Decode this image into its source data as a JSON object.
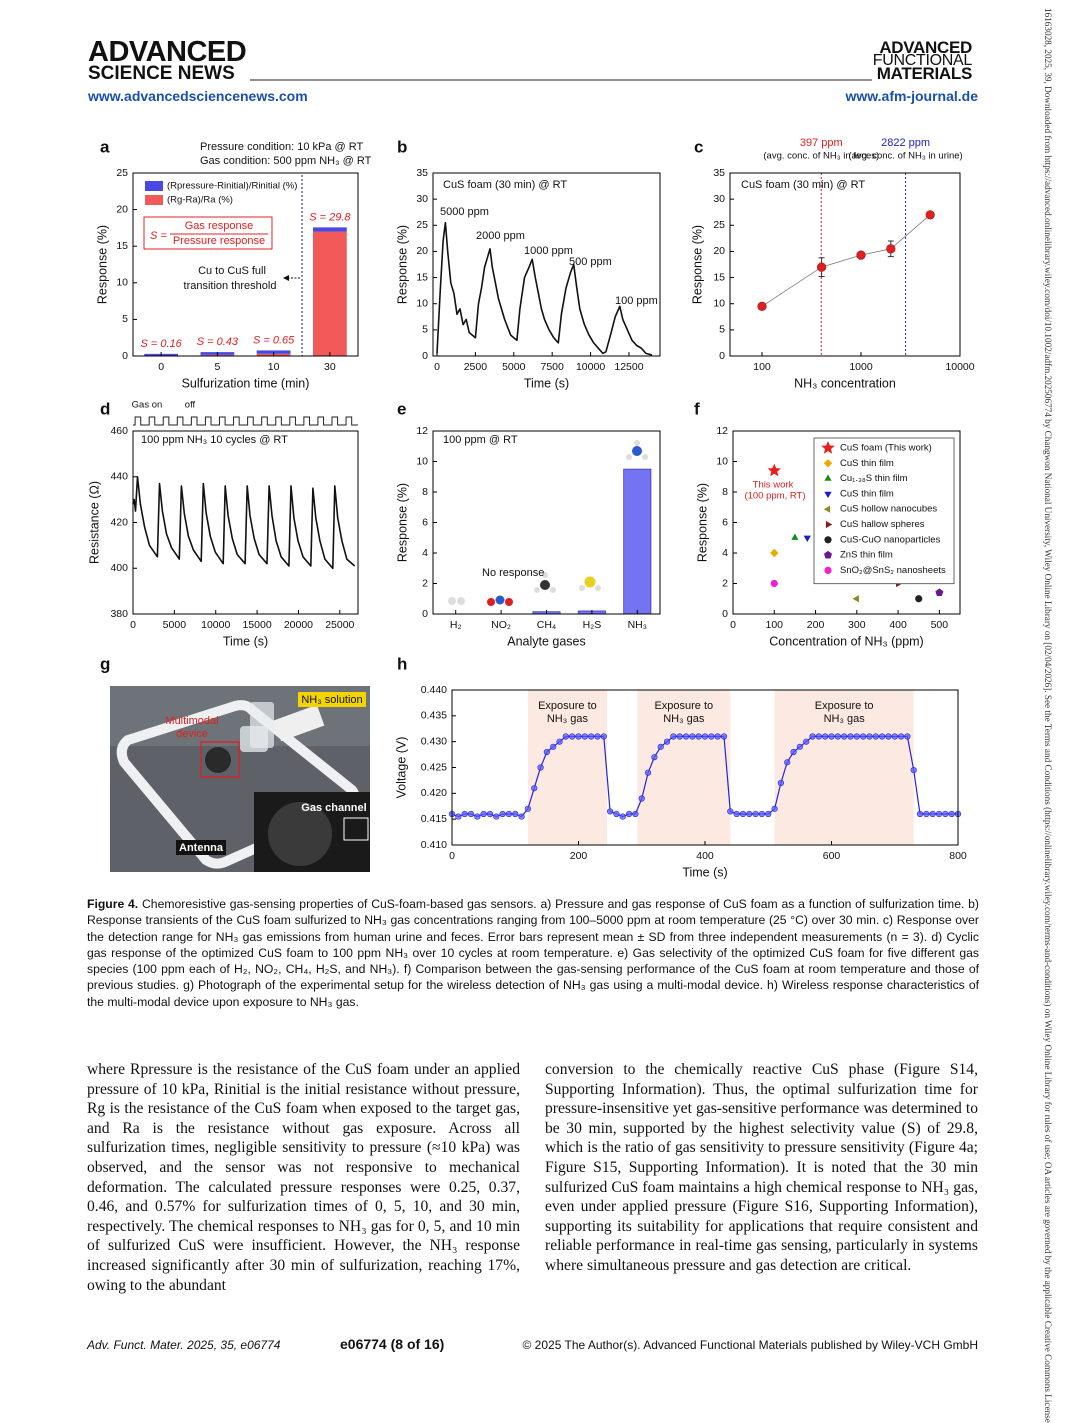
{
  "header": {
    "left_logo": [
      "ADVANCED",
      "SCIENCE NEWS"
    ],
    "left_url": "www.advancedsciencenews.com",
    "right_logo": [
      "ADVANCED",
      "FUNCTIONAL",
      "MATERIALS"
    ],
    "right_url": "www.afm-journal.de"
  },
  "chart_data": [
    {
      "type": "bar",
      "panel": "a",
      "stacked": true,
      "xlabel": "Sulfurization time (min)",
      "ylabel": "Response (%)",
      "categories": [
        "0",
        "5",
        "10",
        "30"
      ],
      "series": [
        {
          "name": "(Rg-Ra)/Ra (%)",
          "color": "#f25a5a",
          "values": [
            0.04,
            0.16,
            0.3,
            17.0
          ]
        },
        {
          "name": "(Rpressure-Rinitial)/Rinitial (%)",
          "color": "#4848e6",
          "values": [
            0.25,
            0.37,
            0.46,
            0.57
          ]
        }
      ],
      "selectivity_labels": [
        "S = 0.16",
        "S = 0.43",
        "S = 0.65",
        "S = 29.8"
      ],
      "legend": "upper left",
      "ylim": [
        0,
        25
      ],
      "yticks": [
        0,
        5,
        10,
        15,
        20,
        25
      ],
      "notes": [
        "Pressure condition: 10 kPa @ RT",
        "Gas condition: 500 ppm NH₃ @ RT",
        "S =",
        "Gas response",
        "Pressure response",
        "Cu to CuS full",
        "transition threshold"
      ]
    },
    {
      "type": "line",
      "panel": "b",
      "xlabel": "Time (s)",
      "ylabel": "Response (%)",
      "color": "#111111",
      "x": [
        0,
        200,
        400,
        550,
        700,
        900,
        1100,
        1300,
        1500,
        1700,
        1900,
        2100,
        2300,
        2500,
        2700,
        2900,
        3100,
        3300,
        3450,
        3600,
        3800,
        4000,
        4200,
        4400,
        4600,
        4800,
        5000,
        5200,
        5400,
        5700,
        6000,
        6200,
        6400,
        6600,
        6800,
        7000,
        7300,
        7600,
        7900,
        8100,
        8400,
        8700,
        8900,
        9100,
        9300,
        9600,
        9900,
        10200,
        10500,
        10800,
        11000,
        11300,
        11600,
        11900,
        12100,
        12400,
        12700,
        13000,
        13300,
        13600,
        14000
      ],
      "values": [
        0.5,
        12,
        22,
        25.5,
        20,
        14,
        12,
        8,
        9,
        6,
        7,
        4.5,
        4,
        3.5,
        10,
        13,
        17,
        19,
        20.5,
        17,
        14,
        11,
        9,
        7,
        5.5,
        4,
        3.5,
        3,
        9,
        15,
        17,
        18.5,
        15,
        12,
        9,
        7,
        5,
        3.5,
        2.5,
        8,
        13,
        16,
        17.5,
        13,
        9,
        6,
        4,
        2.5,
        1.5,
        0.5,
        0.8,
        4,
        7.5,
        9.5,
        7,
        5,
        3,
        2,
        1.5,
        0.5,
        0.2
      ],
      "xlim": [
        -260,
        14520
      ],
      "xticks": [
        0,
        2500,
        5000,
        7500,
        10000,
        12500
      ],
      "ylim": [
        0,
        35
      ],
      "yticks": [
        0,
        5,
        10,
        15,
        20,
        25,
        30,
        35
      ],
      "notes": [
        "CuS foam (30 min) @ RT",
        "5000 ppm",
        "2000 ppm",
        "1000 ppm",
        "500 ppm",
        "100 ppm"
      ]
    },
    {
      "type": "scatter",
      "panel": "c",
      "xlabel": "NH₃ concentration",
      "ylabel": "Response (%)",
      "color": "#e02020",
      "xlog": true,
      "x": [
        100,
        400,
        1000,
        2000,
        5000
      ],
      "values": [
        9.5,
        17,
        19.3,
        20.5,
        27
      ],
      "errors": [
        null,
        1.8,
        null,
        1.5,
        null
      ],
      "xlim": [
        47.5,
        10000
      ],
      "xticks": [
        100,
        1000,
        10000
      ],
      "ylim": [
        0,
        35
      ],
      "yticks": [
        0,
        5,
        10,
        15,
        20,
        25,
        30,
        35
      ],
      "vlines": [
        {
          "value": 397,
          "label": "397 ppm",
          "note": "(avg. conc. of NH₃ in feces)",
          "color": "#e02020"
        },
        {
          "value": 2822,
          "label": "2822 ppm",
          "note": "(avg. conc. of NH₃ in urine)",
          "color": "#2020d0"
        }
      ],
      "notes": [
        "CuS foam (30 min) @ RT"
      ]
    },
    {
      "type": "line",
      "panel": "d",
      "xlabel": "Time (s)",
      "ylabel": "Resistance (Ω)",
      "color": "#111111",
      "x": [
        0,
        150,
        300,
        550,
        900,
        1400,
        2000,
        2950,
        3200,
        3550,
        4050,
        4650,
        5600,
        5850,
        6200,
        6700,
        7300,
        8250,
        8500,
        8850,
        9350,
        9950,
        10900,
        11150,
        11500,
        12000,
        12600,
        13550,
        13800,
        14150,
        14650,
        15250,
        16200,
        16450,
        16800,
        17300,
        17900,
        18850,
        19100,
        19450,
        19950,
        20550,
        21500,
        21750,
        22100,
        22600,
        23200,
        24150,
        24400,
        24750,
        25250,
        25850,
        26800
      ],
      "values": [
        428,
        430,
        425,
        440,
        428,
        418,
        410,
        405,
        437,
        425,
        415,
        409,
        404,
        436,
        424,
        414,
        408,
        403,
        437,
        424,
        414,
        407,
        402,
        436,
        423,
        413,
        406,
        402,
        436,
        423,
        413,
        406,
        402,
        436,
        423,
        412,
        405,
        401,
        436,
        422,
        412,
        405,
        401,
        435,
        422,
        412,
        404,
        400,
        436,
        422,
        412,
        404,
        401
      ],
      "xlim": [
        0,
        27200
      ],
      "xticks": [
        0,
        5000,
        10000,
        15000,
        20000,
        25000
      ],
      "ylim": [
        380,
        460
      ],
      "yticks": [
        380,
        400,
        420,
        440,
        460
      ],
      "notes": [
        "100 ppm NH₃ 10 cycles @ RT",
        "Gas on",
        "off"
      ]
    },
    {
      "type": "bar",
      "panel": "e",
      "xlabel": "Analyte gases",
      "ylabel": "Response (%)",
      "color": "#7474f2",
      "stroke": "#3a3ad0",
      "categories": [
        "H₂",
        "NO₂",
        "CH₄",
        "H₂S",
        "NH₃"
      ],
      "values": [
        0,
        0,
        0.15,
        0.2,
        9.5
      ],
      "ylim": [
        0,
        12
      ],
      "yticks": [
        0,
        2,
        4,
        6,
        8,
        10,
        12
      ],
      "notes": [
        "100 ppm @ RT",
        "No response"
      ]
    },
    {
      "type": "scatter",
      "panel": "f",
      "xlabel": "Concentration of NH₃ (ppm)",
      "ylabel": "Response (%)",
      "legend": "upper right",
      "series": [
        {
          "name": "CuS foam (This work)",
          "color": "#e81f1f",
          "marker": "star",
          "x": [
            100
          ],
          "values": [
            9.4
          ]
        },
        {
          "name": "CuS thin film",
          "color": "#f0a800",
          "marker": "diamond",
          "x": [
            100
          ],
          "values": [
            4
          ]
        },
        {
          "name": "Cu₁.₃₈S thin film",
          "color": "#1a8a1a",
          "marker": "up",
          "x": [
            150
          ],
          "values": [
            5
          ]
        },
        {
          "name": "CuS thin film",
          "color": "#1a1ad0",
          "marker": "down",
          "x": [
            180
          ],
          "values": [
            5
          ]
        },
        {
          "name": "CuS hollow nanocubes",
          "color": "#8a8a20",
          "marker": "left",
          "x": [
            300
          ],
          "values": [
            1
          ]
        },
        {
          "name": "CuS hallow spheres",
          "color": "#8b1a1a",
          "marker": "right",
          "x": [
            400
          ],
          "values": [
            2
          ]
        },
        {
          "name": "CuS-CuO nanoparticles",
          "color": "#222222",
          "marker": "circle",
          "x": [
            450
          ],
          "values": [
            1
          ]
        },
        {
          "name": "ZnS thin film",
          "color": "#6a1a8a",
          "marker": "pentagon",
          "x": [
            500
          ],
          "values": [
            1.4
          ]
        },
        {
          "name": "SnO₂@SnS₂ nanosheets",
          "color": "#f020d0",
          "marker": "circle",
          "x": [
            100
          ],
          "values": [
            2
          ]
        }
      ],
      "xlim": [
        0,
        550
      ],
      "xticks": [
        0,
        100,
        200,
        300,
        400,
        500
      ],
      "ylim": [
        0,
        12
      ],
      "yticks": [
        0,
        2,
        4,
        6,
        8,
        10,
        12
      ],
      "notes": [
        "This work",
        "(100 ppm, RT)"
      ]
    },
    {
      "type": "line",
      "panel": "h",
      "xlabel": "Time (s)",
      "ylabel": "Voltage (V)",
      "color": "#2424e0",
      "markers": true,
      "x": [
        0,
        10,
        20,
        30,
        40,
        50,
        60,
        70,
        80,
        90,
        100,
        110,
        120,
        130,
        140,
        150,
        160,
        170,
        180,
        190,
        200,
        210,
        220,
        230,
        240,
        250,
        260,
        270,
        280,
        290,
        300,
        310,
        320,
        330,
        340,
        350,
        360,
        370,
        380,
        390,
        400,
        410,
        420,
        430,
        440,
        450,
        460,
        470,
        480,
        490,
        500,
        510,
        520,
        530,
        540,
        550,
        560,
        570,
        580,
        590,
        600,
        610,
        620,
        630,
        640,
        650,
        660,
        670,
        680,
        690,
        700,
        710,
        720,
        730,
        740,
        750,
        760,
        770,
        780,
        790,
        800
      ],
      "values": [
        0.416,
        0.4155,
        0.416,
        0.416,
        0.4155,
        0.416,
        0.416,
        0.4155,
        0.416,
        0.416,
        0.416,
        0.4155,
        0.417,
        0.421,
        0.425,
        0.428,
        0.429,
        0.43,
        0.431,
        0.431,
        0.431,
        0.431,
        0.431,
        0.431,
        0.431,
        0.4165,
        0.416,
        0.4155,
        0.416,
        0.416,
        0.419,
        0.424,
        0.427,
        0.429,
        0.43,
        0.431,
        0.431,
        0.431,
        0.431,
        0.431,
        0.431,
        0.431,
        0.431,
        0.431,
        0.4165,
        0.416,
        0.416,
        0.416,
        0.416,
        0.416,
        0.416,
        0.417,
        0.422,
        0.426,
        0.428,
        0.429,
        0.43,
        0.431,
        0.431,
        0.431,
        0.431,
        0.431,
        0.431,
        0.431,
        0.431,
        0.431,
        0.431,
        0.431,
        0.431,
        0.431,
        0.431,
        0.431,
        0.431,
        0.4245,
        0.416,
        0.416,
        0.416,
        0.416,
        0.416,
        0.416,
        0.416
      ],
      "spans": [
        {
          "from": 120,
          "to": 245,
          "label": [
            "Exposure to",
            "NH₃ gas"
          ]
        },
        {
          "from": 293,
          "to": 440,
          "label": [
            "Exposure to",
            "NH₃ gas"
          ]
        },
        {
          "from": 510,
          "to": 730,
          "label": [
            "Exposure to",
            "NH₃ gas"
          ]
        }
      ],
      "xlim": [
        0,
        800
      ],
      "xticks": [
        0,
        200,
        400,
        600,
        800
      ],
      "ylim": [
        0.41,
        0.44
      ],
      "yticks": [
        {
          "value": 0.41,
          "label": "0.410"
        },
        0.415,
        {
          "value": 0.42,
          "label": "0.420"
        },
        0.425,
        {
          "value": 0.43,
          "label": "0.430"
        },
        0.435,
        {
          "value": 0.44,
          "label": "0.440"
        }
      ]
    }
  ],
  "photo": {
    "panel": "g",
    "labels": [
      "NH₃ solution",
      "Multimodal",
      "device",
      "Gas channel",
      "Antenna"
    ]
  },
  "caption": {
    "label": "Figure 4.",
    "text": "Chemoresistive gas-sensing properties of CuS-foam-based gas sensors. a) Pressure and gas response of CuS foam as a function of sulfurization time. b) Response transients of the CuS foam sulfurized to NH₃ gas concentrations ranging from 100–5000 ppm at room temperature (25 °C) over 30 min. c) Response over the detection range for NH₃ gas emissions from human urine and feces. Error bars represent mean ± SD from three independent measurements (n = 3). d) Cyclic gas response of the optimized CuS foam to 100 ppm NH₃ over 10 cycles at room temperature. e) Gas selectivity of the optimized CuS foam for five different gas species (100 ppm each of H₂, NO₂, CH₄, H₂S, and NH₃). f) Comparison between the gas-sensing performance of the CuS foam at room temperature and those of previous studies. g) Photograph of the experimental setup for the wireless detection of NH₃ gas using a multi-modal device. h) Wireless response characteristics of the multi-modal device upon exposure to NH₃ gas."
  },
  "body": {
    "left": "where Rpressure is the resistance of the CuS foam under an applied pressure of 10 kPa, Rinitial is the initial resistance without pressure, Rg is the resistance of the CuS foam when exposed to the target gas, and Ra is the resistance without gas exposure. Across all sulfurization times, negligible sensitivity to pressure (≈10 kPa) was observed, and the sensor was not responsive to mechanical deformation. The calculated pressure responses were 0.25, 0.37, 0.46, and 0.57% for sulfurization times of 0, 5, 10, and 30 min, respectively. The chemical responses to NH₃ gas for 0, 5, and 10 min of sulfurized CuS were insufficient. However, the NH₃ response increased significantly after 30 min of sulfurization, reaching 17%, owing to the abundant",
    "right": "conversion to the chemically reactive CuS phase (Figure S14, Supporting Information). Thus, the optimal sulfurization time for pressure-insensitive yet gas-sensitive performance was determined to be 30 min, supported by the highest selectivity value (S) of 29.8, which is the ratio of gas sensitivity to pressure sensitivity (Figure 4a; Figure S15, Supporting Information). It is noted that the 30 min sulfurized CuS foam maintains a high chemical response to NH₃ gas, even under applied pressure (Figure S16, Supporting Information), supporting its suitability for applications that require consistent and reliable performance in real-time gas sensing, particularly in systems where simultaneous pressure and gas detection are critical."
  },
  "footer": {
    "citation": "Adv. Funct. Mater. 2025, 35, e06774",
    "page": "e06774 (8 of 16)",
    "copyright": "© 2025 The Author(s). Advanced Functional Materials published by Wiley-VCH GmbH"
  },
  "side_note": "16163028, 2025, 39, Downloaded from https://advanced.onlinelibrary.wiley.com/doi/10.1002/adfm.202506774 by Changwon National University, Wiley Online Library on [02/04/2026]. See the Terms and Conditions (https://onlinelibrary.wiley.com/terms-and-conditions) on Wiley Online Library for rules of use; OA articles are governed by the applicable Creative Commons License"
}
